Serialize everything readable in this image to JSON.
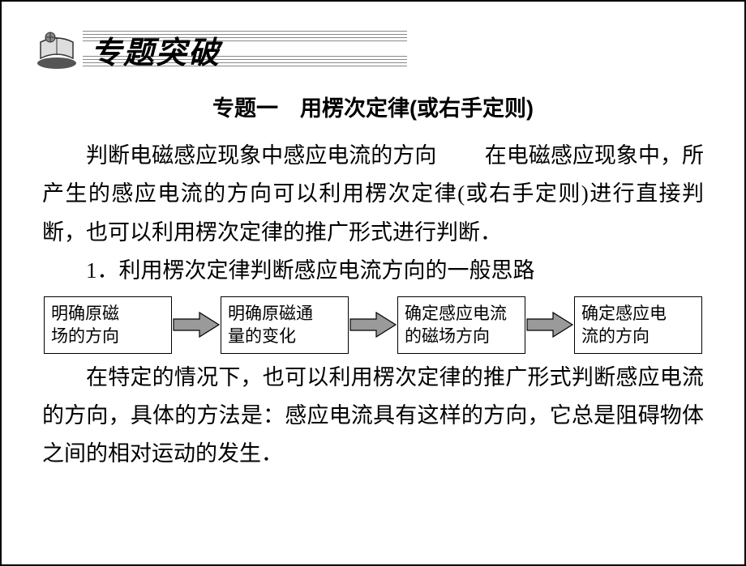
{
  "banner": {
    "title": "专题突破",
    "title_color": "#000000",
    "title_fontsize": 38,
    "stripe_color": "#888888"
  },
  "subtitle": "专题一　用楞次定律(或右手定则)",
  "para1_a": "判断电磁感应现象中感应电流的方向",
  "para1_b": "在电磁感应现象中，所产生的感应电流的方向可以利用楞次定律(或右手定则)进行直接判断，也可以利用楞次定律的推广形式进行判断．",
  "para2": "1．利用楞次定律判断感应电流方向的一般思路",
  "flowchart": {
    "boxes": [
      "明确原磁\n场的方向",
      "明确原磁通\n量的变化",
      "确定感应电流\n的磁场方向",
      "确定感应电\n流的方向"
    ],
    "box_border_color": "#000000",
    "arrow_fill": "#9a9a9a",
    "arrow_stroke": "#000000"
  },
  "para3": "在特定的情况下，也可以利用楞次定律的推广形式判断感应电流的方向，具体的方法是：感应电流具有这样的方向，它总是阻碍物体之间的相对运动的发生．",
  "colors": {
    "background": "#ffffff",
    "text": "#000000",
    "border": "#000000"
  }
}
